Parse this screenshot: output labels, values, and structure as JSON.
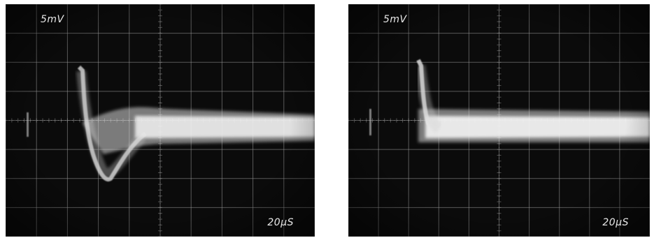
{
  "panels": [
    {
      "id": "left",
      "volt_label": "5mV",
      "time_label": "20μS",
      "trace": "pulse-with-undershoot"
    },
    {
      "id": "right",
      "volt_label": "5mV",
      "time_label": "20μS",
      "trace": "pulse-no-undershoot"
    }
  ]
}
